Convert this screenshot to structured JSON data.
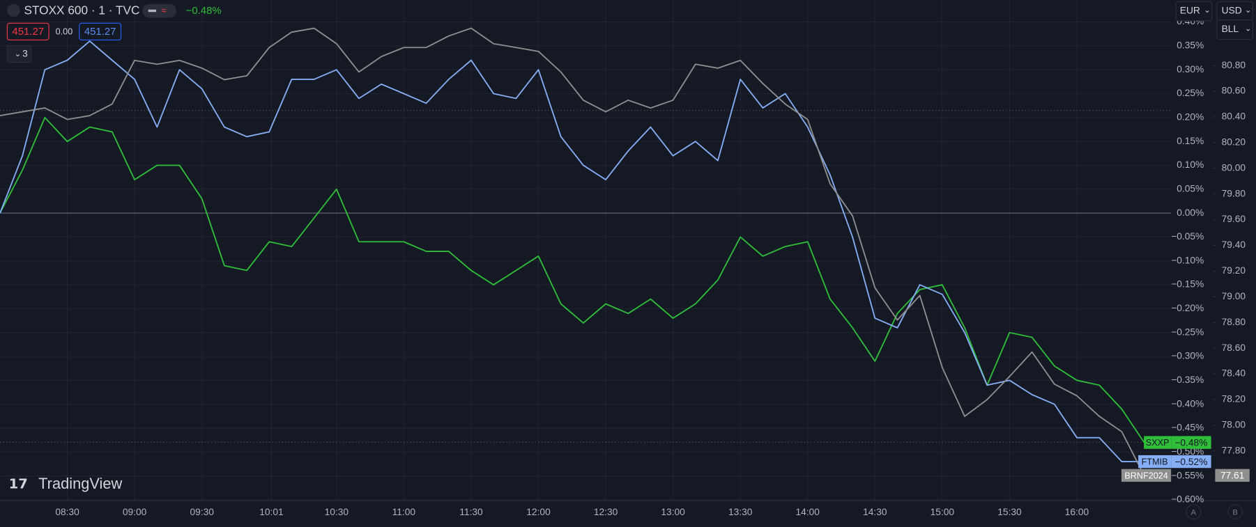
{
  "header": {
    "symbol": "STOXX 600 · 1 · TVC",
    "change": "−0.48%",
    "sell": "451.27",
    "spread": "0.00",
    "buy": "451.27",
    "indicators": "3"
  },
  "toolbar": {
    "currency": "EUR",
    "currency2": "USD",
    "unit": "BLL"
  },
  "logo": "TradingView",
  "scale_buttons": [
    "A",
    "B"
  ],
  "chart_data": {
    "type": "line",
    "x": [
      "08:00",
      "08:10",
      "08:20",
      "08:30",
      "08:40",
      "08:50",
      "09:00",
      "09:10",
      "09:20",
      "09:30",
      "09:40",
      "09:50",
      "10:00",
      "10:10",
      "10:20",
      "10:30",
      "10:40",
      "10:50",
      "11:00",
      "11:10",
      "11:20",
      "11:30",
      "11:40",
      "11:50",
      "12:00",
      "12:10",
      "12:20",
      "12:30",
      "12:40",
      "12:50",
      "13:00",
      "13:10",
      "13:20",
      "13:30",
      "13:40",
      "13:50",
      "14:00",
      "14:10",
      "14:20",
      "14:30",
      "14:40",
      "14:50",
      "15:00",
      "15:10",
      "15:20",
      "15:30",
      "15:40",
      "15:50",
      "16:00",
      "16:10",
      "16:20",
      "16:30"
    ],
    "xlim": [
      "08:00",
      "16:42"
    ],
    "xticks": [
      "08:30",
      "09:00",
      "09:30",
      "10:01",
      "10:30",
      "11:00",
      "11:30",
      "12:00",
      "12:30",
      "13:00",
      "13:30",
      "14:00",
      "14:30",
      "15:00",
      "15:30",
      "16:00"
    ],
    "ylim": [
      -0.6,
      0.446
    ],
    "yticks": [
      {
        "value": 0.4,
        "label": "0.40%"
      },
      {
        "value": 0.35,
        "label": "0.35%"
      },
      {
        "value": 0.3,
        "label": "0.30%"
      },
      {
        "value": 0.25,
        "label": "0.25%"
      },
      {
        "value": 0.2,
        "label": "0.20%"
      },
      {
        "value": 0.15,
        "label": "0.15%"
      },
      {
        "value": 0.1,
        "label": "0.10%"
      },
      {
        "value": 0.05,
        "label": "0.05%"
      },
      {
        "value": 0,
        "label": "0.00%"
      },
      {
        "value": -0.05,
        "label": "−0.05%"
      },
      {
        "value": -0.1,
        "label": "−0.10%"
      },
      {
        "value": -0.15,
        "label": "−0.15%"
      },
      {
        "value": -0.2,
        "label": "−0.20%"
      },
      {
        "value": -0.25,
        "label": "−0.25%"
      },
      {
        "value": -0.3,
        "label": "−0.30%"
      },
      {
        "value": -0.35,
        "label": "−0.35%"
      },
      {
        "value": -0.4,
        "label": "−0.40%"
      },
      {
        "value": -0.45,
        "label": "−0.45%"
      },
      {
        "value": -0.5,
        "label": "−0.50%"
      },
      {
        "value": -0.55,
        "label": "−0.55%"
      },
      {
        "value": -0.6,
        "label": "−0.60%"
      }
    ],
    "y2lim": [
      77.42,
      81.31
    ],
    "y2ticks": [
      {
        "value": 77.8,
        "label": "77.80"
      },
      {
        "value": 78,
        "label": "78.00"
      },
      {
        "value": 78.2,
        "label": "78.20"
      },
      {
        "value": 78.4,
        "label": "78.40"
      },
      {
        "value": 78.6,
        "label": "78.60"
      },
      {
        "value": 78.8,
        "label": "78.80"
      },
      {
        "value": 79,
        "label": "79.00"
      },
      {
        "value": 79.2,
        "label": "79.20"
      },
      {
        "value": 79.4,
        "label": "79.40"
      },
      {
        "value": 79.6,
        "label": "79.60"
      },
      {
        "value": 79.8,
        "label": "79.80"
      },
      {
        "value": 80,
        "label": "80.00"
      },
      {
        "value": 80.2,
        "label": "80.20"
      },
      {
        "value": 80.4,
        "label": "80.40"
      },
      {
        "value": 80.6,
        "label": "80.60"
      },
      {
        "value": 80.8,
        "label": "80.80"
      }
    ],
    "grid": true,
    "series": [
      {
        "name": "SXXP",
        "color": "#2fbd3a",
        "price_label": "−0.48%",
        "values": [
          0.0,
          0.09,
          0.2,
          0.15,
          0.18,
          0.17,
          0.07,
          0.1,
          0.1,
          0.03,
          -0.11,
          -0.12,
          -0.06,
          -0.07,
          -0.01,
          0.05,
          -0.06,
          -0.06,
          -0.06,
          -0.08,
          -0.08,
          -0.12,
          -0.15,
          -0.12,
          -0.09,
          -0.19,
          -0.23,
          -0.19,
          -0.21,
          -0.18,
          -0.22,
          -0.19,
          -0.14,
          -0.05,
          -0.09,
          -0.07,
          -0.06,
          -0.18,
          -0.24,
          -0.31,
          -0.21,
          -0.16,
          -0.15,
          -0.24,
          -0.36,
          -0.25,
          -0.26,
          -0.32,
          -0.35,
          -0.36,
          -0.41,
          -0.48
        ]
      },
      {
        "name": "FTMIB",
        "color": "#86aef5",
        "price_label": "−0.52%",
        "values": [
          0.0,
          0.12,
          0.3,
          0.32,
          0.36,
          0.32,
          0.28,
          0.18,
          0.3,
          0.26,
          0.18,
          0.16,
          0.17,
          0.28,
          0.28,
          0.3,
          0.24,
          0.27,
          0.25,
          0.23,
          0.28,
          0.32,
          0.25,
          0.24,
          0.3,
          0.16,
          0.1,
          0.07,
          0.13,
          0.18,
          0.12,
          0.15,
          0.11,
          0.28,
          0.22,
          0.25,
          0.18,
          0.08,
          -0.05,
          -0.22,
          -0.24,
          -0.15,
          -0.17,
          -0.25,
          -0.36,
          -0.35,
          -0.38,
          -0.4,
          -0.47,
          -0.47,
          -0.52,
          -0.52
        ]
      },
      {
        "name": "BRNF2024",
        "color": "#8f8f8f",
        "axis": "y2",
        "price_label": "77.61",
        "values": [
          80.41,
          80.44,
          80.47,
          80.38,
          80.41,
          80.5,
          80.84,
          80.81,
          80.84,
          80.78,
          80.69,
          80.72,
          80.94,
          81.06,
          81.09,
          80.97,
          80.75,
          80.87,
          80.94,
          80.94,
          81.03,
          81.09,
          80.97,
          80.94,
          80.91,
          80.75,
          80.53,
          80.44,
          80.53,
          80.47,
          80.53,
          80.81,
          80.78,
          80.84,
          80.66,
          80.5,
          80.38,
          79.88,
          79.63,
          79.07,
          78.82,
          79.01,
          78.45,
          78.07,
          78.2,
          78.38,
          78.57,
          78.32,
          78.23,
          78.07,
          77.95,
          77.61
        ]
      }
    ]
  }
}
